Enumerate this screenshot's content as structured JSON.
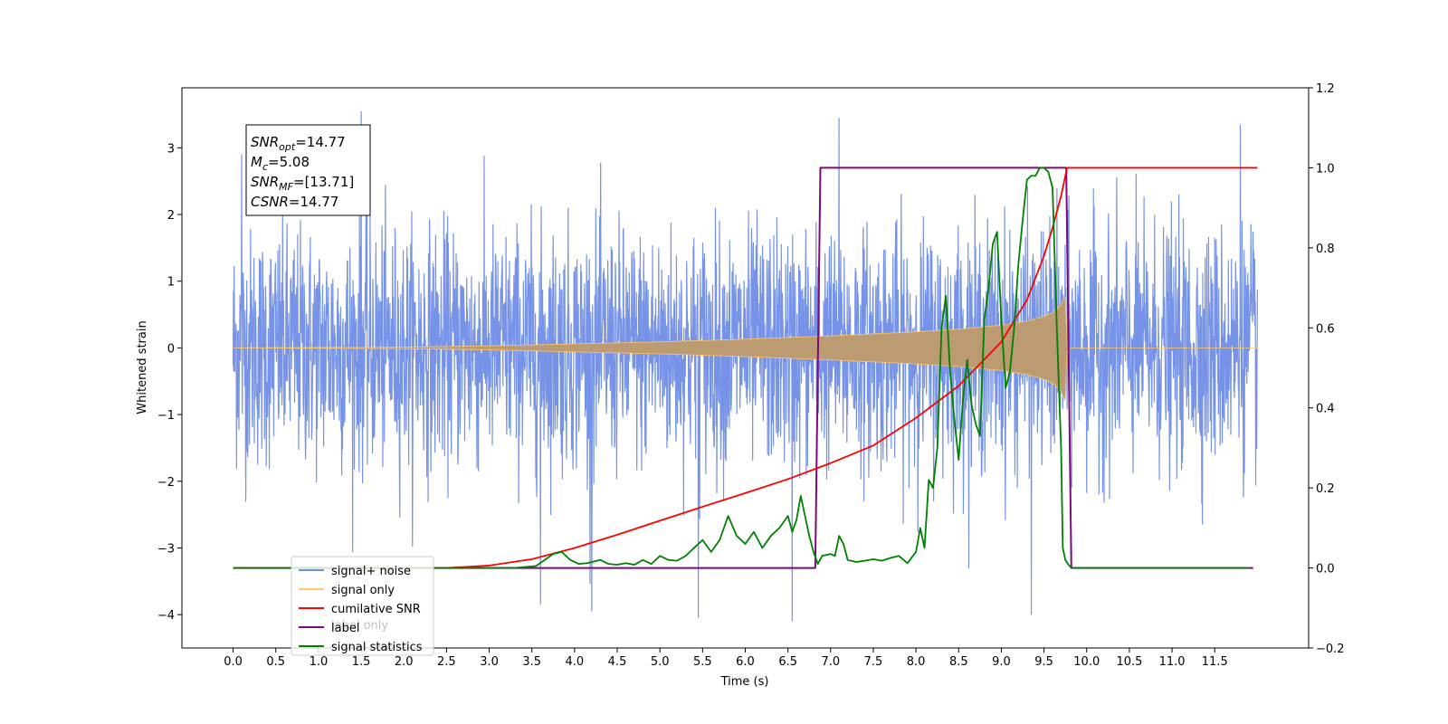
{
  "chart_data": {
    "type": "line",
    "xlabel": "Time (s)",
    "ylabel_left": "Whitened strain",
    "ylabel_right": "",
    "xlim": [
      -0.6,
      12.6
    ],
    "ylim_left": [
      -4.5,
      3.9
    ],
    "ylim_right": [
      -0.2,
      1.2
    ],
    "x_ticks": [
      "0.0",
      "0.5",
      "1.0",
      "1.5",
      "2.0",
      "2.5",
      "3.0",
      "3.5",
      "4.0",
      "4.5",
      "5.0",
      "5.5",
      "6.0",
      "6.5",
      "7.0",
      "7.5",
      "8.0",
      "8.5",
      "9.0",
      "9.5",
      "10.0",
      "10.5",
      "11.0",
      "11.5"
    ],
    "y_ticks_left": [
      "3",
      "2",
      "1",
      "0",
      "−1",
      "−2",
      "−3",
      "−4"
    ],
    "y_ticks_right": [
      "1.2",
      "1.0",
      "0.8",
      "0.6",
      "0.4",
      "0.2",
      "0.0",
      "−0.2"
    ],
    "legend_position": "lower-left",
    "legend": [
      {
        "name": "signal+ noise",
        "color": "#6f8de6"
      },
      {
        "name": "signal only",
        "color": "#ffc766"
      },
      {
        "name": "cumilative SNR",
        "color": "#ff0000"
      },
      {
        "name": "label",
        "color": "#7b0a7b"
      },
      {
        "name": "signal statistics",
        "color": "#008000"
      }
    ],
    "legend_overlap_text": "label only",
    "info_box": {
      "lines": [
        {
          "sym": "SNR",
          "sub": "opt",
          "rest": "=14.77"
        },
        {
          "sym": "M",
          "sub": "c",
          "rest": "=5.08"
        },
        {
          "sym": "SNR",
          "sub": "MF",
          "rest": "=[13.71]"
        },
        {
          "sym": "CSNR",
          "sub": "",
          "rest": "=14.77"
        }
      ]
    },
    "series": [
      {
        "name": "signal+ noise",
        "axis": "left",
        "color": "#6f8de6",
        "x_range": [
          0.0,
          12.0
        ],
        "approx_band": [
          -2.3,
          2.3
        ],
        "peaks": [
          [
            1.5,
            3.55
          ],
          [
            7.1,
            3.45
          ],
          [
            11.8,
            3.35
          ],
          [
            0.1,
            2.9
          ],
          [
            6.55,
            -4.1
          ],
          [
            9.35,
            -4.0
          ],
          [
            5.45,
            -4.05
          ],
          [
            4.2,
            -3.95
          ],
          [
            3.6,
            -3.85
          ]
        ]
      },
      {
        "name": "signal only",
        "axis": "left",
        "color": "#ffc766",
        "x": [
          0.0,
          2.0,
          3.0,
          4.0,
          5.0,
          6.0,
          7.0,
          7.5,
          8.0,
          8.5,
          9.0,
          9.3,
          9.5,
          9.6,
          9.7,
          9.75,
          9.77,
          10.0,
          12.0
        ],
        "amplitude": [
          0.0,
          0.01,
          0.03,
          0.06,
          0.09,
          0.13,
          0.18,
          0.21,
          0.24,
          0.28,
          0.34,
          0.4,
          0.47,
          0.53,
          0.65,
          0.8,
          0.0,
          0.0,
          0.0
        ]
      },
      {
        "name": "cumilative SNR",
        "axis": "right",
        "color": "#ff0000",
        "x": [
          0.0,
          2.5,
          3.0,
          3.5,
          4.0,
          4.5,
          5.0,
          5.5,
          6.0,
          6.5,
          7.0,
          7.5,
          8.0,
          8.5,
          9.0,
          9.3,
          9.5,
          9.6,
          9.7,
          9.77,
          11.5,
          12.0
        ],
        "values": [
          0.0,
          0.0,
          0.006,
          0.022,
          0.05,
          0.083,
          0.118,
          0.153,
          0.187,
          0.222,
          0.262,
          0.306,
          0.375,
          0.455,
          0.565,
          0.67,
          0.78,
          0.85,
          0.93,
          1.0,
          1.0,
          1.0
        ]
      },
      {
        "name": "label",
        "axis": "right",
        "color": "#7b0a7b",
        "x": [
          0.0,
          6.82,
          6.88,
          9.76,
          9.82,
          11.95
        ],
        "values": [
          0.0,
          0.0,
          1.0,
          1.0,
          0.0,
          0.0
        ]
      },
      {
        "name": "signal statistics",
        "axis": "right",
        "color": "#008000",
        "x": [
          0.0,
          3.3,
          3.55,
          3.65,
          3.75,
          3.85,
          3.95,
          4.05,
          4.15,
          4.3,
          4.4,
          4.5,
          4.6,
          4.7,
          4.8,
          4.9,
          5.0,
          5.1,
          5.2,
          5.3,
          5.4,
          5.5,
          5.6,
          5.7,
          5.8,
          5.9,
          6.0,
          6.1,
          6.2,
          6.3,
          6.4,
          6.5,
          6.55,
          6.6,
          6.65,
          6.7,
          6.75,
          6.8,
          6.85,
          6.9,
          7.0,
          7.05,
          7.1,
          7.15,
          7.2,
          7.3,
          7.4,
          7.5,
          7.6,
          7.7,
          7.8,
          7.9,
          8.0,
          8.05,
          8.1,
          8.15,
          8.2,
          8.25,
          8.3,
          8.35,
          8.4,
          8.45,
          8.5,
          8.55,
          8.6,
          8.65,
          8.7,
          8.75,
          8.8,
          8.85,
          8.9,
          8.95,
          9.0,
          9.05,
          9.1,
          9.15,
          9.2,
          9.25,
          9.3,
          9.35,
          9.4,
          9.45,
          9.5,
          9.55,
          9.6,
          9.65,
          9.7,
          9.72,
          9.75,
          9.78,
          9.82,
          9.9,
          10.0,
          11.9
        ],
        "values": [
          0.0,
          0.0,
          0.005,
          0.02,
          0.035,
          0.04,
          0.02,
          0.01,
          0.012,
          0.02,
          0.01,
          0.008,
          0.012,
          0.008,
          0.02,
          0.01,
          0.03,
          0.02,
          0.018,
          0.03,
          0.05,
          0.07,
          0.04,
          0.07,
          0.13,
          0.08,
          0.06,
          0.09,
          0.05,
          0.08,
          0.1,
          0.13,
          0.09,
          0.12,
          0.18,
          0.13,
          0.08,
          0.04,
          0.01,
          0.03,
          0.035,
          0.03,
          0.08,
          0.06,
          0.02,
          0.015,
          0.018,
          0.022,
          0.018,
          0.025,
          0.03,
          0.012,
          0.04,
          0.1,
          0.05,
          0.22,
          0.2,
          0.3,
          0.6,
          0.68,
          0.49,
          0.37,
          0.27,
          0.42,
          0.52,
          0.41,
          0.36,
          0.33,
          0.62,
          0.7,
          0.81,
          0.84,
          0.62,
          0.45,
          0.49,
          0.6,
          0.76,
          0.87,
          0.97,
          0.98,
          0.98,
          1.0,
          1.0,
          0.99,
          0.95,
          0.6,
          0.3,
          0.05,
          0.02,
          0.01,
          0.0,
          0.0,
          0.0,
          0.0
        ]
      }
    ]
  }
}
